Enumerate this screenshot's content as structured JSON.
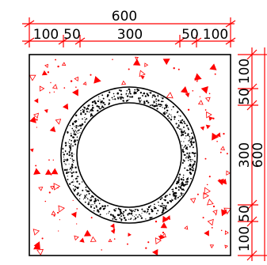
{
  "colors": {
    "dimension_line": "#ff0000",
    "outline": "#000000",
    "aggregate_fill": "#ff0000",
    "concrete_dots": "#000000",
    "background": "#ffffff"
  },
  "dimensions": {
    "top_overall": "600",
    "top_segments": [
      "100",
      "50",
      "300",
      "50",
      "100"
    ],
    "right_overall": "600",
    "right_segments": [
      "100",
      "50",
      "300",
      "50",
      "100"
    ]
  }
}
